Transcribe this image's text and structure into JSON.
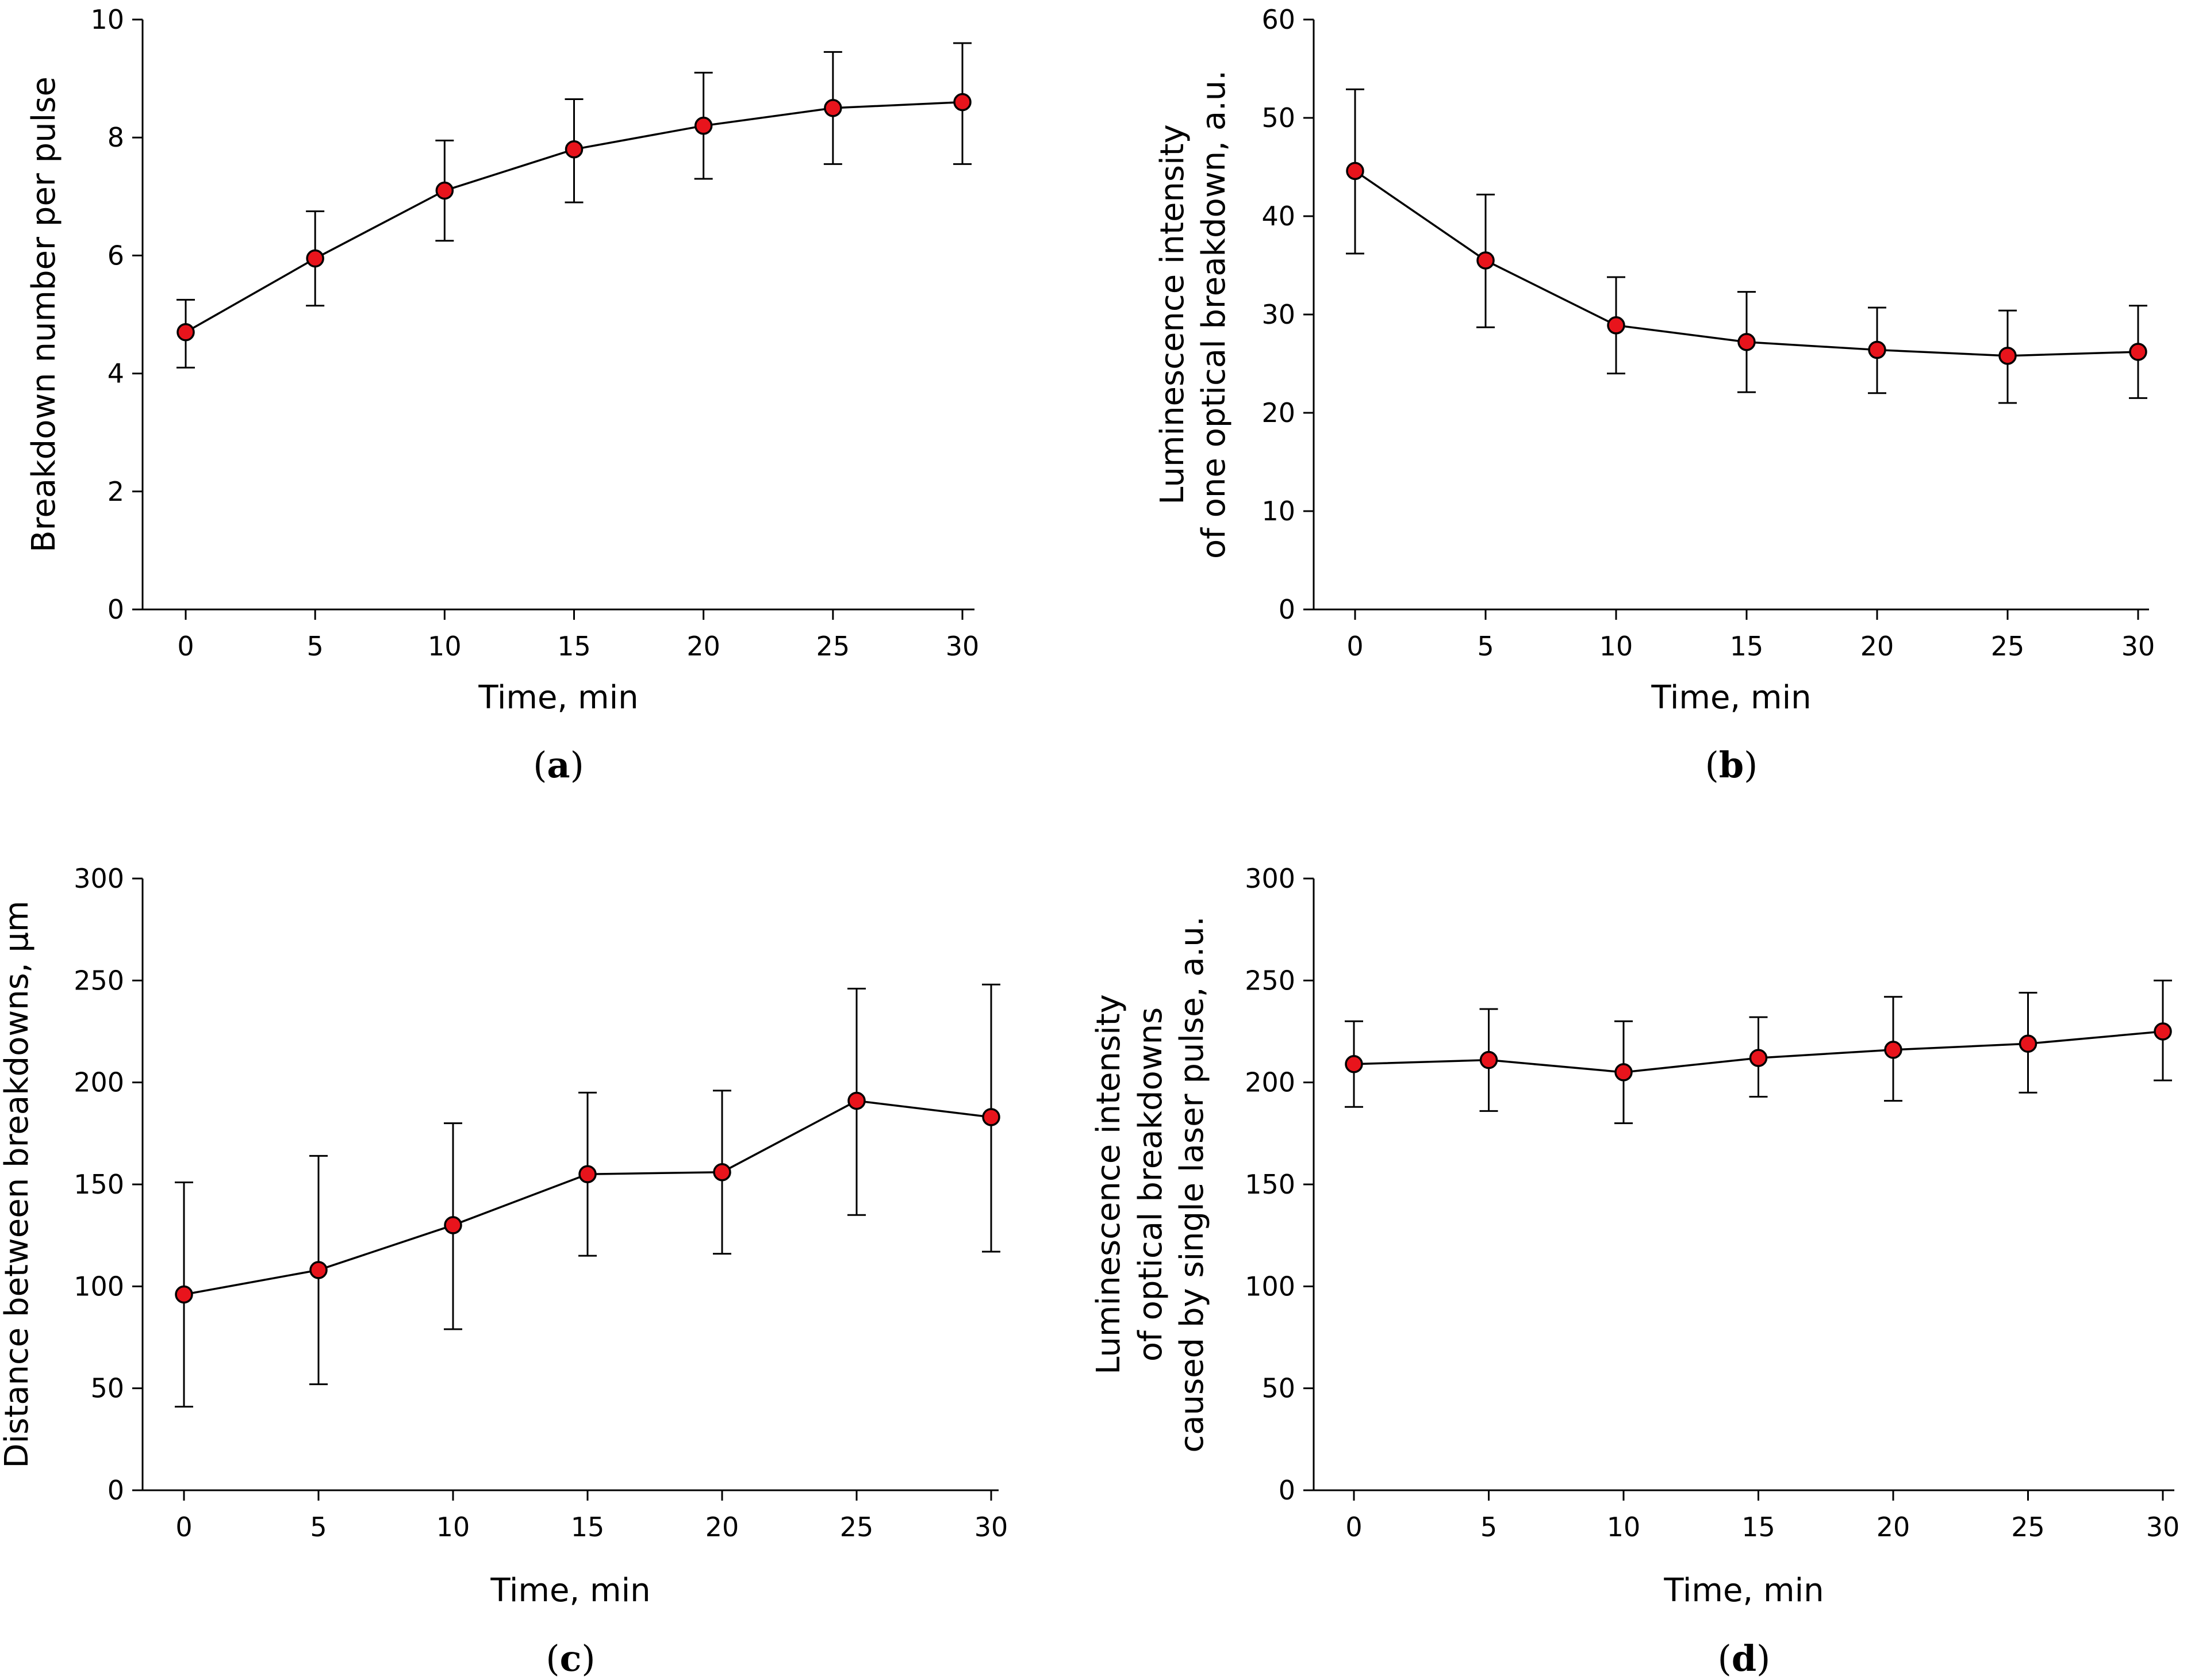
{
  "colors": {
    "marker_fill": "#e8141c",
    "line": "#000000"
  },
  "chart_data": [
    {
      "id": "a",
      "type": "line",
      "panel_label": "a",
      "xlabel": "Time, min",
      "ylabel": [
        "Breakdown number per pulse"
      ],
      "xlim": [
        0,
        30
      ],
      "ylim": [
        0,
        10
      ],
      "xticks": [
        "0",
        "5",
        "10",
        "15",
        "20",
        "25",
        "30"
      ],
      "yticks": [
        "0",
        "2",
        "4",
        "6",
        "8",
        "10"
      ],
      "series": [
        {
          "x": [
            0,
            5,
            10,
            15,
            20,
            25,
            30
          ],
          "values": [
            4.7,
            5.95,
            7.1,
            7.8,
            8.2,
            8.5,
            8.6
          ],
          "error_low": [
            4.1,
            5.15,
            6.25,
            6.9,
            7.3,
            7.55,
            7.55
          ],
          "error_high": [
            5.25,
            6.75,
            7.95,
            8.65,
            9.1,
            9.45,
            9.6
          ]
        }
      ]
    },
    {
      "id": "b",
      "type": "line",
      "panel_label": "b",
      "xlabel": "Time, min",
      "ylabel": [
        "Luminescence intensity",
        "of one optical breakdown, a.u."
      ],
      "xlim": [
        0,
        30
      ],
      "ylim": [
        0,
        60
      ],
      "xticks": [
        "0",
        "5",
        "10",
        "15",
        "20",
        "25",
        "30"
      ],
      "yticks": [
        "0",
        "10",
        "20",
        "30",
        "40",
        "50",
        "60"
      ],
      "series": [
        {
          "x": [
            0,
            5,
            10,
            15,
            20,
            25,
            30
          ],
          "values": [
            44.6,
            35.5,
            28.9,
            27.2,
            26.4,
            25.8,
            26.2
          ],
          "error_low": [
            36.2,
            28.7,
            24.0,
            22.1,
            22.0,
            21.0,
            21.5
          ],
          "error_high": [
            52.9,
            42.2,
            33.8,
            32.3,
            30.7,
            30.4,
            30.9
          ]
        }
      ]
    },
    {
      "id": "c",
      "type": "line",
      "panel_label": "c",
      "xlabel": "Time, min",
      "ylabel": [
        "Distance between breakdowns, μm"
      ],
      "xlim": [
        0,
        30
      ],
      "ylim": [
        0,
        300
      ],
      "xticks": [
        "0",
        "5",
        "10",
        "15",
        "20",
        "25",
        "30"
      ],
      "yticks": [
        "0",
        "50",
        "100",
        "150",
        "200",
        "250",
        "300"
      ],
      "series": [
        {
          "x": [
            0,
            5,
            10,
            15,
            20,
            25,
            30
          ],
          "values": [
            96,
            108,
            130,
            155,
            156,
            191,
            183
          ],
          "error_low": [
            41,
            52,
            79,
            115,
            116,
            135,
            117
          ],
          "error_high": [
            151,
            164,
            180,
            195,
            196,
            246,
            248
          ]
        }
      ]
    },
    {
      "id": "d",
      "type": "line",
      "panel_label": "d",
      "xlabel": "Time, min",
      "ylabel": [
        "Luminescence intensity",
        "of optical breakdowns",
        "caused by single laser pulse, a.u."
      ],
      "xlim": [
        0,
        30
      ],
      "ylim": [
        0,
        300
      ],
      "xticks": [
        "0",
        "5",
        "10",
        "15",
        "20",
        "25",
        "30"
      ],
      "yticks": [
        "0",
        "50",
        "100",
        "150",
        "200",
        "250",
        "300"
      ],
      "series": [
        {
          "x": [
            0,
            5,
            10,
            15,
            20,
            25,
            30
          ],
          "values": [
            209,
            211,
            205,
            212,
            216,
            219,
            225
          ],
          "error_low": [
            188,
            186,
            180,
            193,
            191,
            195,
            201
          ],
          "error_high": [
            230,
            236,
            230,
            232,
            242,
            244,
            250
          ]
        }
      ]
    }
  ]
}
